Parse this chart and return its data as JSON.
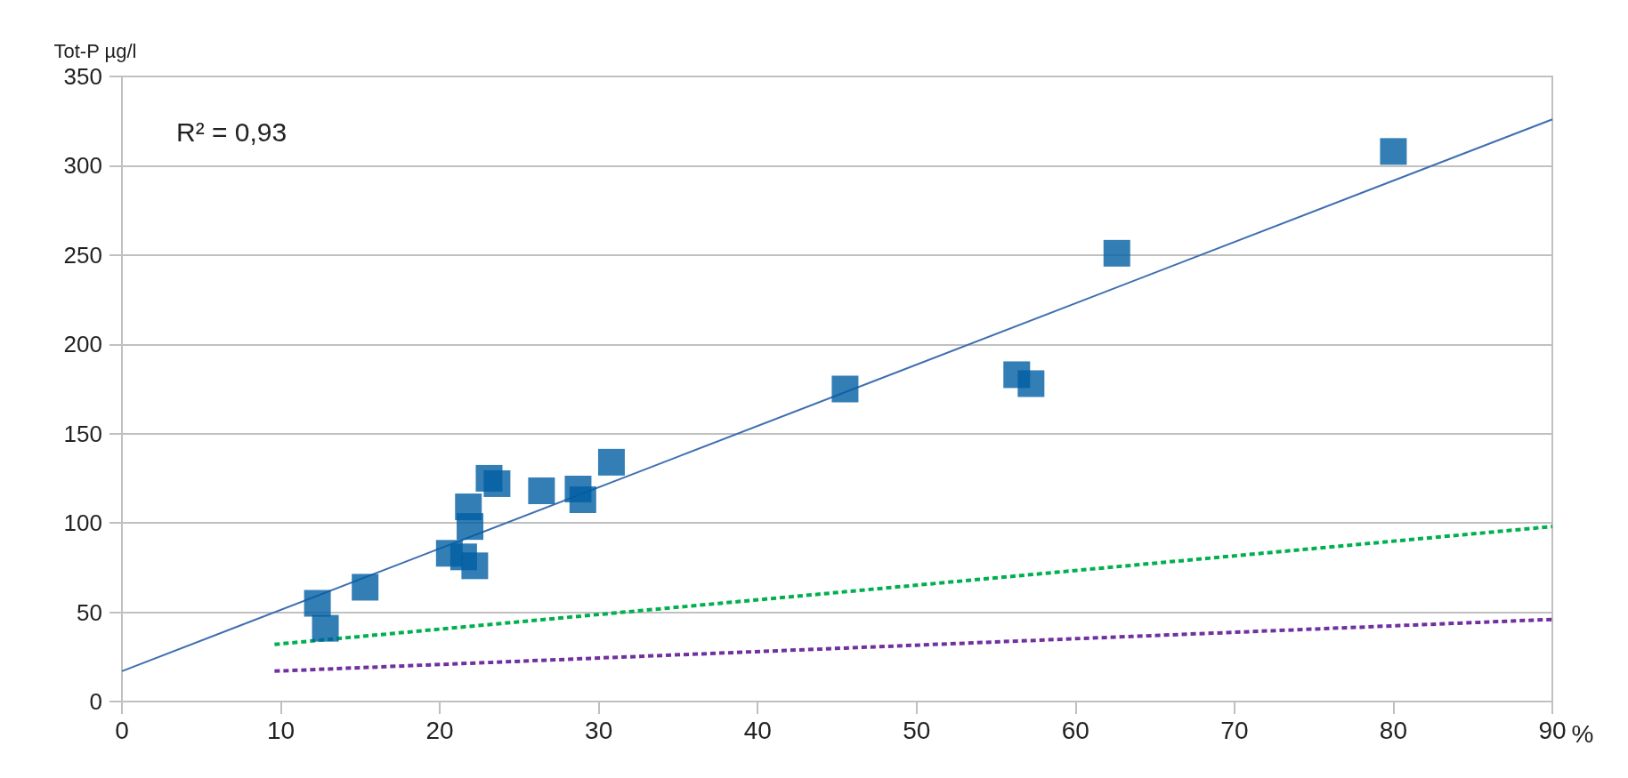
{
  "chart_data": {
    "type": "scatter",
    "ylabel": "Tot-P µg/l",
    "xlabel": "%",
    "annotations": [
      "R² = 0,93"
    ],
    "xlim": [
      0,
      90
    ],
    "xticks": [
      0,
      10,
      20,
      30,
      40,
      50,
      60,
      70,
      80,
      90
    ],
    "ylim": [
      0,
      350
    ],
    "yticks": [
      0,
      50,
      100,
      150,
      200,
      250,
      300,
      350
    ],
    "grid": "y",
    "marker": "square",
    "series": [
      {
        "color": "#005ea2",
        "x": [
          12.3,
          12.8,
          15.3,
          20.6,
          21.5,
          22.2,
          21.9,
          21.8,
          23.1,
          23.6,
          26.4,
          28.7,
          29.0,
          30.8,
          45.5,
          56.3,
          57.2,
          62.6,
          80.0
        ],
        "values": [
          55,
          41,
          64,
          83,
          81,
          76,
          98,
          109,
          125,
          122,
          118,
          119,
          113,
          134,
          175,
          183,
          178,
          251,
          308
        ]
      },
      {
        "type": "line",
        "color": "#3f6fb0",
        "line_style": "solid",
        "marker": "none",
        "x": [
          0,
          90
        ],
        "values": [
          17,
          326
        ]
      },
      {
        "type": "line",
        "color": "#00b050",
        "line_style": "dashed",
        "marker": "none",
        "x": [
          9.6,
          90
        ],
        "values": [
          32,
          98
        ]
      },
      {
        "type": "line",
        "color": "#7030a0",
        "line_style": "dashed",
        "marker": "none",
        "x": [
          9.6,
          90
        ],
        "values": [
          17,
          46
        ]
      }
    ]
  }
}
